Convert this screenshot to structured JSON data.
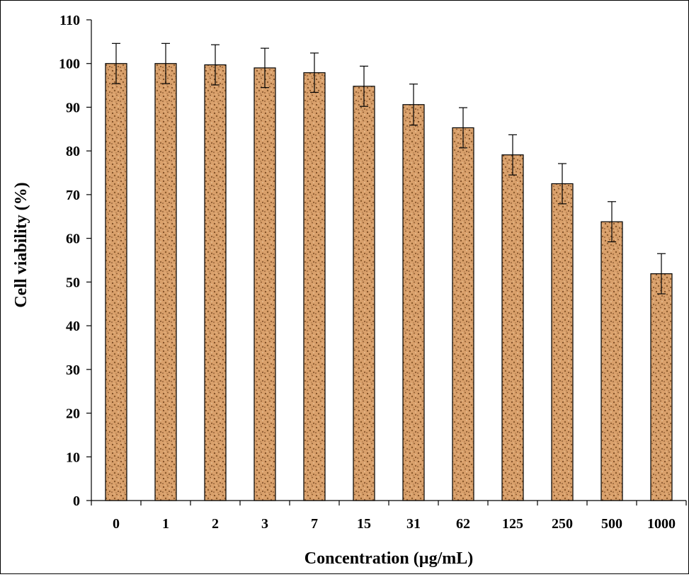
{
  "chart_data": {
    "type": "bar",
    "title": "",
    "xlabel": "Concentration (µg/mL)",
    "ylabel": "Cell viability (%)",
    "categories": [
      "0",
      "1",
      "2",
      "3",
      "7",
      "15",
      "31",
      "62",
      "125",
      "250",
      "500",
      "1000"
    ],
    "values": [
      100,
      100,
      99.7,
      99,
      97.9,
      94.8,
      90.6,
      85.3,
      79.1,
      72.5,
      63.8,
      51.9
    ],
    "errors": [
      4.6,
      4.6,
      4.6,
      4.5,
      4.5,
      4.6,
      4.7,
      4.6,
      4.6,
      4.6,
      4.6,
      4.6
    ],
    "ylim": [
      0,
      110
    ],
    "yticks": [
      0,
      10,
      20,
      30,
      40,
      50,
      60,
      70,
      80,
      90,
      100,
      110
    ],
    "grid": false,
    "legend": "none",
    "bar_color": "#d9a06b",
    "bar_texture_color": "#7a4a22"
  }
}
